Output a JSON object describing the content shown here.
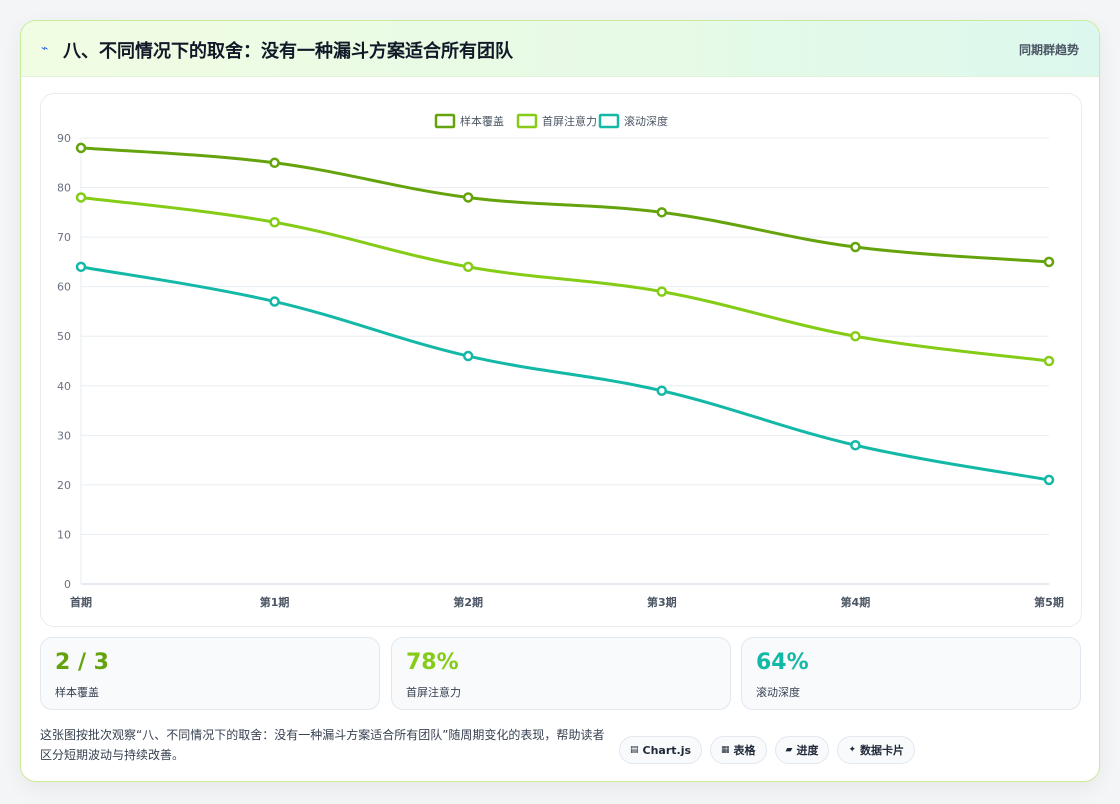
{
  "header": {
    "icon": "lightning-icon",
    "icon_glyph": "⌁",
    "title": "八、不同情况下的取舍：没有一种漏斗方案适合所有团队",
    "action": "同期群趋势"
  },
  "chart_data": {
    "type": "line",
    "categories": [
      "首期",
      "第1期",
      "第2期",
      "第3期",
      "第4期",
      "第5期"
    ],
    "series": [
      {
        "name": "样本覆盖",
        "color": "#65a30d",
        "values": [
          88,
          85,
          78,
          75,
          68,
          65
        ]
      },
      {
        "name": "首屏注意力",
        "color": "#84cc16",
        "values": [
          78,
          73,
          64,
          59,
          50,
          45
        ]
      },
      {
        "name": "滚动深度",
        "color": "#14b8a6",
        "values": [
          64,
          57,
          46,
          39,
          28,
          21
        ]
      }
    ],
    "ylim": [
      0,
      90
    ],
    "yticks": [
      0,
      10,
      20,
      30,
      40,
      50,
      60,
      70,
      80,
      90
    ],
    "legend": "top-center",
    "grid": true
  },
  "stats": [
    {
      "value": "2 / 3",
      "label": "样本覆盖",
      "color": "#65a30d"
    },
    {
      "value": "78%",
      "label": "首屏注意力",
      "color": "#84cc16"
    },
    {
      "value": "64%",
      "label": "滚动深度",
      "color": "#14b8a6"
    }
  ],
  "footer": {
    "text": "这张图按批次观察“八、不同情况下的取舍：没有一种漏斗方案适合所有团队”随周期变化的表现，帮助读者区分短期波动与持续改善。",
    "tags": [
      {
        "icon": "chart-icon",
        "glyph": "▤",
        "label": "Chart.js"
      },
      {
        "icon": "table-icon",
        "glyph": "▦",
        "label": "表格"
      },
      {
        "icon": "progress-icon",
        "glyph": "▰",
        "label": "进度"
      },
      {
        "icon": "card-icon",
        "glyph": "✦",
        "label": "数据卡片"
      }
    ]
  }
}
